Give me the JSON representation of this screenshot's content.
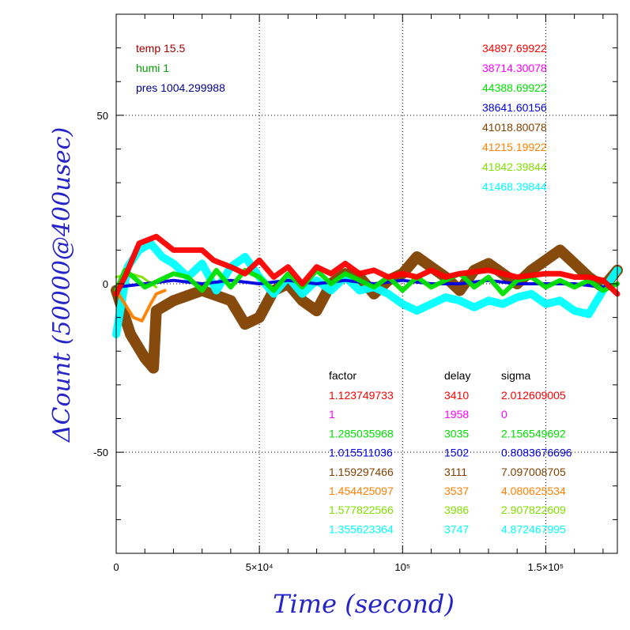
{
  "chart_data": {
    "type": "line",
    "title": "",
    "xlabel": "Time (second)",
    "ylabel": "ΔCount (50000@400usec)",
    "xlim": [
      0,
      175000
    ],
    "ylim": [
      -80,
      80
    ],
    "grid": "dotted at major ticks",
    "x_tick_labels": [
      {
        "value": 0,
        "label": "0"
      },
      {
        "value": 50000,
        "label": "5×10⁴"
      },
      {
        "value": 100000,
        "label": "10⁵"
      },
      {
        "value": 150000,
        "label": "1.5×10⁵"
      }
    ],
    "y_tick_labels": [
      {
        "value": 50,
        "label": "50"
      },
      {
        "value": 0,
        "label": "0"
      },
      {
        "value": -50,
        "label": "-50"
      }
    ],
    "env_labels": [
      {
        "text": "temp 15.5",
        "color": "#a00000"
      },
      {
        "text": "humi 1",
        "color": "#00a000"
      },
      {
        "text": "pres 1004.299988",
        "color": "#000090"
      }
    ],
    "series": [
      {
        "color": "#ff0000",
        "mean": "34897.69922",
        "factor": "1.123749733",
        "delay": "3410",
        "sigma": "2.012609005",
        "points": [
          [
            0,
            -3
          ],
          [
            3000,
            2
          ],
          [
            8000,
            12
          ],
          [
            14000,
            14
          ],
          [
            20000,
            10
          ],
          [
            30000,
            10
          ],
          [
            34000,
            7
          ],
          [
            40000,
            5
          ],
          [
            45000,
            3
          ],
          [
            50000,
            7
          ],
          [
            55000,
            2
          ],
          [
            60000,
            5
          ],
          [
            65000,
            0
          ],
          [
            70000,
            5
          ],
          [
            75000,
            3
          ],
          [
            80000,
            6
          ],
          [
            85000,
            3
          ],
          [
            90000,
            4
          ],
          [
            95000,
            2
          ],
          [
            100000,
            3
          ],
          [
            105000,
            2
          ],
          [
            110000,
            4
          ],
          [
            115000,
            2
          ],
          [
            120000,
            3
          ],
          [
            130000,
            4
          ],
          [
            140000,
            2
          ],
          [
            150000,
            3
          ],
          [
            155000,
            3
          ],
          [
            160000,
            2
          ],
          [
            165000,
            2
          ],
          [
            170000,
            1
          ],
          [
            175000,
            -3
          ]
        ]
      },
      {
        "color": "#ff00ff",
        "mean": "38714.30078",
        "factor": "1",
        "delay": "1958",
        "sigma": "0",
        "points": []
      },
      {
        "color": "#00e000",
        "mean": "44388.69922",
        "factor": "1.285035968",
        "delay": "3035",
        "sigma": "2.156549692",
        "points": [
          [
            0,
            -2
          ],
          [
            3000,
            4
          ],
          [
            6000,
            2
          ],
          [
            10000,
            -1
          ],
          [
            15000,
            1
          ],
          [
            20000,
            3
          ],
          [
            25000,
            2
          ],
          [
            30000,
            -2
          ],
          [
            35000,
            4
          ],
          [
            40000,
            -1
          ],
          [
            45000,
            4
          ],
          [
            50000,
            2
          ],
          [
            55000,
            -2
          ],
          [
            60000,
            3
          ],
          [
            65000,
            -1
          ],
          [
            70000,
            4
          ],
          [
            75000,
            0
          ],
          [
            80000,
            3
          ],
          [
            85000,
            1
          ],
          [
            90000,
            -1
          ],
          [
            95000,
            2
          ],
          [
            100000,
            -2
          ],
          [
            105000,
            2
          ],
          [
            110000,
            -1
          ],
          [
            115000,
            1
          ],
          [
            120000,
            3
          ],
          [
            125000,
            -1
          ],
          [
            130000,
            2
          ],
          [
            135000,
            -3
          ],
          [
            140000,
            1
          ],
          [
            145000,
            2
          ],
          [
            150000,
            -1
          ],
          [
            155000,
            1
          ],
          [
            160000,
            -1
          ],
          [
            165000,
            1
          ],
          [
            170000,
            -2
          ],
          [
            175000,
            0
          ]
        ]
      },
      {
        "color": "#0000e0",
        "mean": "38641.60156",
        "factor": "1.015511036",
        "delay": "1502",
        "sigma": "0.8083676696",
        "points": [
          [
            0,
            -1
          ],
          [
            10000,
            0
          ],
          [
            20000,
            1
          ],
          [
            30000,
            0
          ],
          [
            40000,
            1
          ],
          [
            50000,
            0
          ],
          [
            60000,
            1
          ],
          [
            70000,
            0
          ],
          [
            80000,
            1
          ],
          [
            90000,
            0
          ],
          [
            100000,
            1
          ],
          [
            110000,
            0
          ],
          [
            120000,
            0
          ],
          [
            130000,
            1
          ],
          [
            140000,
            0
          ],
          [
            150000,
            0
          ],
          [
            160000,
            0
          ],
          [
            170000,
            -1
          ],
          [
            175000,
            0
          ]
        ]
      },
      {
        "color": "#804000",
        "mean": "41018.80078",
        "factor": "1.159297466",
        "delay": "3111",
        "sigma": "7.097008705",
        "points": [
          [
            0,
            -2
          ],
          [
            5000,
            -15
          ],
          [
            10000,
            -22
          ],
          [
            13000,
            -25
          ],
          [
            14000,
            -8
          ],
          [
            20000,
            -5
          ],
          [
            30000,
            -2
          ],
          [
            40000,
            -5
          ],
          [
            45000,
            -12
          ],
          [
            50000,
            -10
          ],
          [
            55000,
            -2
          ],
          [
            60000,
            0
          ],
          [
            65000,
            -5
          ],
          [
            70000,
            -8
          ],
          [
            75000,
            0
          ],
          [
            80000,
            3
          ],
          [
            85000,
            2
          ],
          [
            90000,
            -3
          ],
          [
            95000,
            1
          ],
          [
            100000,
            3
          ],
          [
            105000,
            8
          ],
          [
            110000,
            5
          ],
          [
            115000,
            2
          ],
          [
            120000,
            -2
          ],
          [
            125000,
            4
          ],
          [
            130000,
            6
          ],
          [
            135000,
            3
          ],
          [
            140000,
            0
          ],
          [
            145000,
            4
          ],
          [
            150000,
            7
          ],
          [
            155000,
            10
          ],
          [
            160000,
            6
          ],
          [
            165000,
            2
          ],
          [
            170000,
            -1
          ],
          [
            175000,
            4
          ]
        ]
      },
      {
        "color": "#ff8000",
        "mean": "41215.19922",
        "factor": "1.454425097",
        "delay": "3537",
        "sigma": "4.080625534",
        "points": [
          [
            0,
            -2
          ],
          [
            3000,
            -6
          ],
          [
            6000,
            -10
          ],
          [
            9000,
            -11
          ],
          [
            12000,
            -6
          ],
          [
            14000,
            -3
          ],
          [
            17000,
            -2
          ]
        ]
      },
      {
        "color": "#80e000",
        "mean": "41842.39844",
        "factor": "1.577822566",
        "delay": "3986",
        "sigma": "2.907822609",
        "points": [
          [
            0,
            2
          ],
          [
            5000,
            3
          ],
          [
            9000,
            2
          ],
          [
            14000,
            -1
          ]
        ]
      },
      {
        "color": "#00ffff",
        "mean": "41468.39844",
        "factor": "1.355623364",
        "delay": "3747",
        "sigma": "4.872467995",
        "points": [
          [
            0,
            -15
          ],
          [
            4000,
            5
          ],
          [
            8000,
            10
          ],
          [
            12000,
            12
          ],
          [
            16000,
            8
          ],
          [
            20000,
            6
          ],
          [
            25000,
            2
          ],
          [
            30000,
            6
          ],
          [
            35000,
            -2
          ],
          [
            40000,
            5
          ],
          [
            45000,
            8
          ],
          [
            50000,
            2
          ],
          [
            55000,
            -3
          ],
          [
            60000,
            2
          ],
          [
            65000,
            -3
          ],
          [
            70000,
            1
          ],
          [
            75000,
            -2
          ],
          [
            80000,
            2
          ],
          [
            85000,
            -2
          ],
          [
            90000,
            -1
          ],
          [
            95000,
            -3
          ],
          [
            100000,
            -6
          ],
          [
            105000,
            -8
          ],
          [
            110000,
            -6
          ],
          [
            115000,
            -4
          ],
          [
            120000,
            -5
          ],
          [
            125000,
            -7
          ],
          [
            130000,
            -5
          ],
          [
            135000,
            -6
          ],
          [
            140000,
            -4
          ],
          [
            145000,
            -3
          ],
          [
            150000,
            -6
          ],
          [
            155000,
            -5
          ],
          [
            160000,
            -8
          ],
          [
            165000,
            -9
          ],
          [
            170000,
            -2
          ],
          [
            175000,
            4
          ]
        ]
      }
    ],
    "stats_header": {
      "factor": "factor",
      "delay": "delay",
      "sigma": "sigma"
    }
  }
}
